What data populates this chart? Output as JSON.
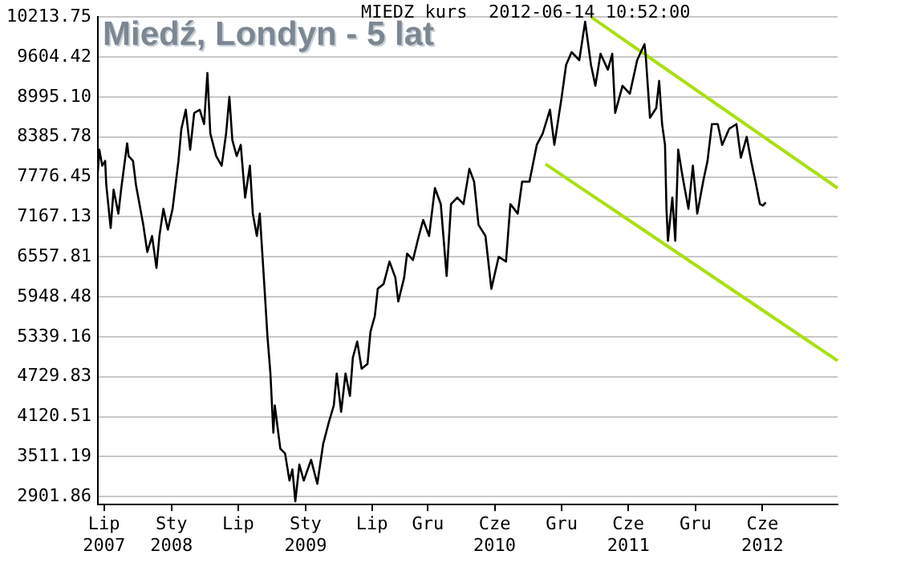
{
  "chart_data": {
    "type": "line",
    "title": "Miedź, Londyn - 5 lat",
    "subtitle": "MIEDZ kurs  2012-06-14 10:52:00",
    "xlim": [
      "2007-06-14",
      "2012-12-23"
    ],
    "xticks": [
      {
        "value": "2007-07-01",
        "label": "Lip\n2007"
      },
      {
        "value": "2008-01-01",
        "label": "Sty\n2008"
      },
      {
        "value": "2008-07-01",
        "label": "Lip"
      },
      {
        "value": "2009-01-01",
        "label": "Sty\n2009"
      },
      {
        "value": "2009-07-01",
        "label": "Lip"
      },
      {
        "value": "2009-12-01",
        "label": "Gru"
      },
      {
        "value": "2010-06-01",
        "label": "Cze\n2010"
      },
      {
        "value": "2010-12-01",
        "label": "Gru"
      },
      {
        "value": "2011-06-01",
        "label": "Cze\n2011"
      },
      {
        "value": "2011-12-01",
        "label": "Gru"
      },
      {
        "value": "2012-06-01",
        "label": "Cze\n2012"
      }
    ],
    "ylim": [
      2780,
      10213.75
    ],
    "yticks": [
      {
        "value": 2901.86,
        "label": "2901.86"
      },
      {
        "value": 3511.19,
        "label": "3511.19"
      },
      {
        "value": 4120.51,
        "label": "4120.51"
      },
      {
        "value": 4729.83,
        "label": "4729.83"
      },
      {
        "value": 5339.16,
        "label": "5339.16"
      },
      {
        "value": 5948.48,
        "label": "5948.48"
      },
      {
        "value": 6557.81,
        "label": "6557.81"
      },
      {
        "value": 7167.13,
        "label": "7167.13"
      },
      {
        "value": 7776.45,
        "label": "7776.45"
      },
      {
        "value": 8385.78,
        "label": "8385.78"
      },
      {
        "value": 8995.1,
        "label": "8995.10"
      },
      {
        "value": 9604.42,
        "label": "9604.42"
      },
      {
        "value": 10213.75,
        "label": "10213.75"
      }
    ],
    "grid": "y",
    "legend": false,
    "marker": "none",
    "line_style": "solid",
    "series": [
      {
        "color": "#000000",
        "x": [
          "2007-06-14",
          "2007-06-18",
          "2007-06-26",
          "2007-07-04",
          "2007-07-07",
          "2007-07-19",
          "2007-07-27",
          "2007-08-09",
          "2007-08-17",
          "2007-09-02",
          "2007-09-06",
          "2007-09-18",
          "2007-09-26",
          "2007-10-16",
          "2007-10-27",
          "2007-11-09",
          "2007-11-21",
          "2007-11-29",
          "2007-12-10",
          "2007-12-22",
          "2008-01-04",
          "2008-01-20",
          "2008-01-28",
          "2008-02-09",
          "2008-02-21",
          "2008-03-03",
          "2008-03-18",
          "2008-03-30",
          "2008-04-08",
          "2008-04-16",
          "2008-05-02",
          "2008-05-17",
          "2008-05-29",
          "2008-06-07",
          "2008-06-15",
          "2008-06-27",
          "2008-07-08",
          "2008-07-20",
          "2008-08-02",
          "2008-08-10",
          "2008-08-21",
          "2008-08-29",
          "2008-09-11",
          "2008-09-19",
          "2008-09-27",
          "2008-10-05",
          "2008-10-09",
          "2008-10-24",
          "2008-11-06",
          "2008-11-18",
          "2008-11-26",
          "2008-12-04",
          "2008-12-15",
          "2008-12-27",
          "2009-01-16",
          "2009-02-02",
          "2009-02-18",
          "2009-03-06",
          "2009-03-19",
          "2009-03-27",
          "2009-04-08",
          "2009-04-20",
          "2009-05-02",
          "2009-05-10",
          "2009-05-22",
          "2009-06-03",
          "2009-06-19",
          "2009-06-27",
          "2009-07-09",
          "2009-07-17",
          "2009-08-02",
          "2009-08-18",
          "2009-09-03",
          "2009-09-11",
          "2009-09-27",
          "2009-10-05",
          "2009-10-21",
          "2009-11-06",
          "2009-11-18",
          "2009-12-04",
          "2009-12-20",
          "2010-01-05",
          "2010-01-21",
          "2010-02-02",
          "2010-02-19",
          "2010-03-08",
          "2010-03-24",
          "2010-04-06",
          "2010-04-18",
          "2010-05-07",
          "2010-05-23",
          "2010-06-12",
          "2010-07-02",
          "2010-07-14",
          "2010-08-03",
          "2010-08-15",
          "2010-09-04",
          "2010-09-24",
          "2010-10-10",
          "2010-10-30",
          "2010-11-11",
          "2010-12-01",
          "2010-12-13",
          "2010-12-28",
          "2011-01-18",
          "2011-02-03",
          "2011-02-19",
          "2011-03-03",
          "2011-03-17",
          "2011-04-06",
          "2011-04-18",
          "2011-04-26",
          "2011-05-16",
          "2011-06-05",
          "2011-06-25",
          "2011-07-15",
          "2011-07-18",
          "2011-07-30",
          "2011-08-16",
          "2011-08-24",
          "2011-09-01",
          "2011-09-09",
          "2011-09-13",
          "2011-09-17",
          "2011-09-29",
          "2011-10-07",
          "2011-10-15",
          "2011-10-27",
          "2011-11-12",
          "2011-11-24",
          "2011-12-06",
          "2011-12-22",
          "2012-01-03",
          "2012-01-15",
          "2012-01-31",
          "2012-02-12",
          "2012-03-02",
          "2012-03-22",
          "2012-04-03",
          "2012-04-19",
          "2012-05-01",
          "2012-05-13",
          "2012-05-25",
          "2012-06-02",
          "2012-06-10"
        ],
        "values": [
          7850,
          8191,
          7947,
          8020,
          7655,
          6997,
          7582,
          7216,
          7606,
          8288,
          8093,
          8020,
          7655,
          7045,
          6631,
          6875,
          6387,
          6875,
          7289,
          6972,
          7289,
          8020,
          8508,
          8800,
          8191,
          8752,
          8800,
          8581,
          9361,
          8435,
          8093,
          7947,
          8435,
          8995,
          8337,
          8093,
          8264,
          7460,
          7947,
          7216,
          6875,
          7216,
          6070,
          5339,
          4779,
          3877,
          4291,
          3633,
          3560,
          3146,
          3316,
          2829,
          3389,
          3146,
          3462,
          3097,
          3706,
          4047,
          4291,
          4779,
          4194,
          4779,
          4437,
          5022,
          5266,
          4852,
          4925,
          5412,
          5656,
          6070,
          6144,
          6485,
          6241,
          5875,
          6241,
          6607,
          6509,
          6875,
          7119,
          6875,
          7606,
          7362,
          6265,
          7362,
          7460,
          7362,
          7898,
          7703,
          7045,
          6875,
          6070,
          6558,
          6485,
          7362,
          7216,
          7703,
          7703,
          8264,
          8435,
          8800,
          8264,
          8995,
          9483,
          9678,
          9556,
          10141,
          9483,
          9166,
          9653,
          9410,
          9653,
          8752,
          9166,
          9044,
          9556,
          9800,
          9653,
          8678,
          8825,
          9239,
          8581,
          8264,
          7289,
          6802,
          7460,
          6802,
          8191,
          7776,
          7289,
          7947,
          7216,
          7703,
          8020,
          8581,
          8581,
          8264,
          8508,
          8581,
          8069,
          8386,
          8020,
          7703,
          7362,
          7338,
          7387
        ]
      },
      {
        "type": "line",
        "color": "#a8e010",
        "x": [
          "2011-02-19",
          "2012-12-23"
        ],
        "values": [
          10213.75,
          7606
        ]
      },
      {
        "type": "line",
        "color": "#a8e010",
        "x": [
          "2010-10-18",
          "2012-12-23"
        ],
        "values": [
          7972,
          4974
        ]
      }
    ]
  }
}
